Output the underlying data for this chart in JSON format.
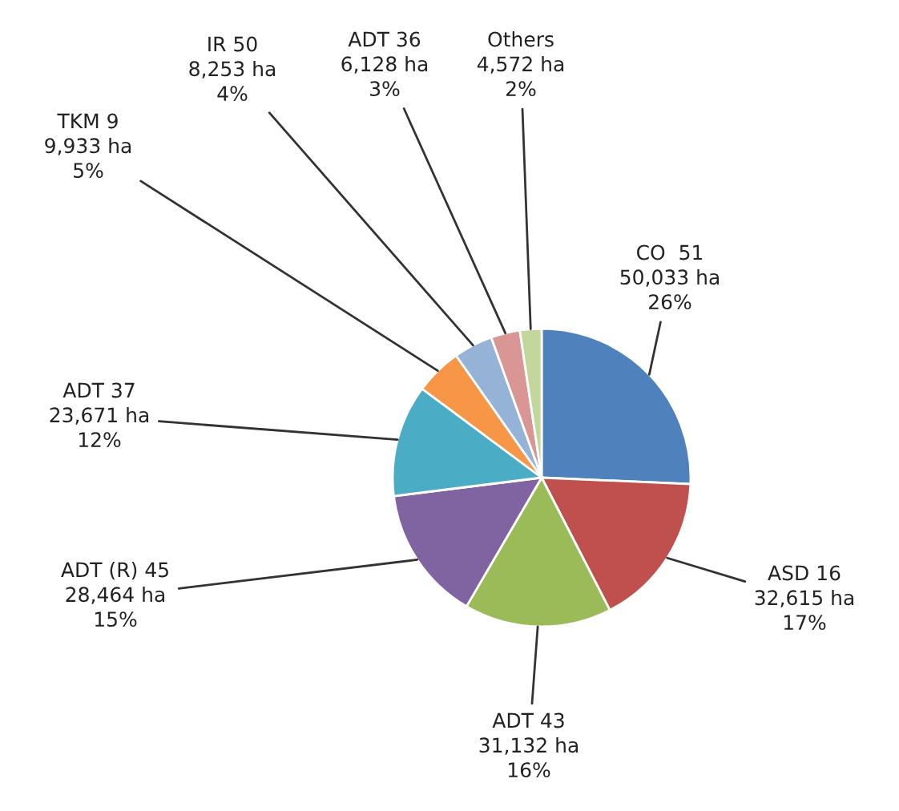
{
  "chart_data": {
    "type": "pie",
    "categories": [
      "CO  51",
      "ASD 16",
      "ADT 43",
      "ADT (R) 45",
      "ADT 37",
      "TKM 9",
      "IR 50",
      "ADT 36",
      "Others"
    ],
    "values": [
      50033,
      32615,
      31132,
      28464,
      23671,
      9933,
      8253,
      6128,
      4572
    ],
    "value_labels": [
      "50,033 ha\n26%",
      "32,615 ha\n17%",
      "31,132 ha\n16%",
      "28,464 ha\n15%",
      "23,671 ha\n12%",
      "9,933 ha\n5%",
      "8,253 ha\n4%",
      "6,128 ha\n3%",
      "4,572 ha\n2%"
    ],
    "colors": [
      "#4f81bd",
      "#c0504d",
      "#9bbb59",
      "#8064a2",
      "#4bacc6",
      "#f79646",
      "#95b3d7",
      "#d99694",
      "#c3d69b"
    ],
    "legend": false
  }
}
